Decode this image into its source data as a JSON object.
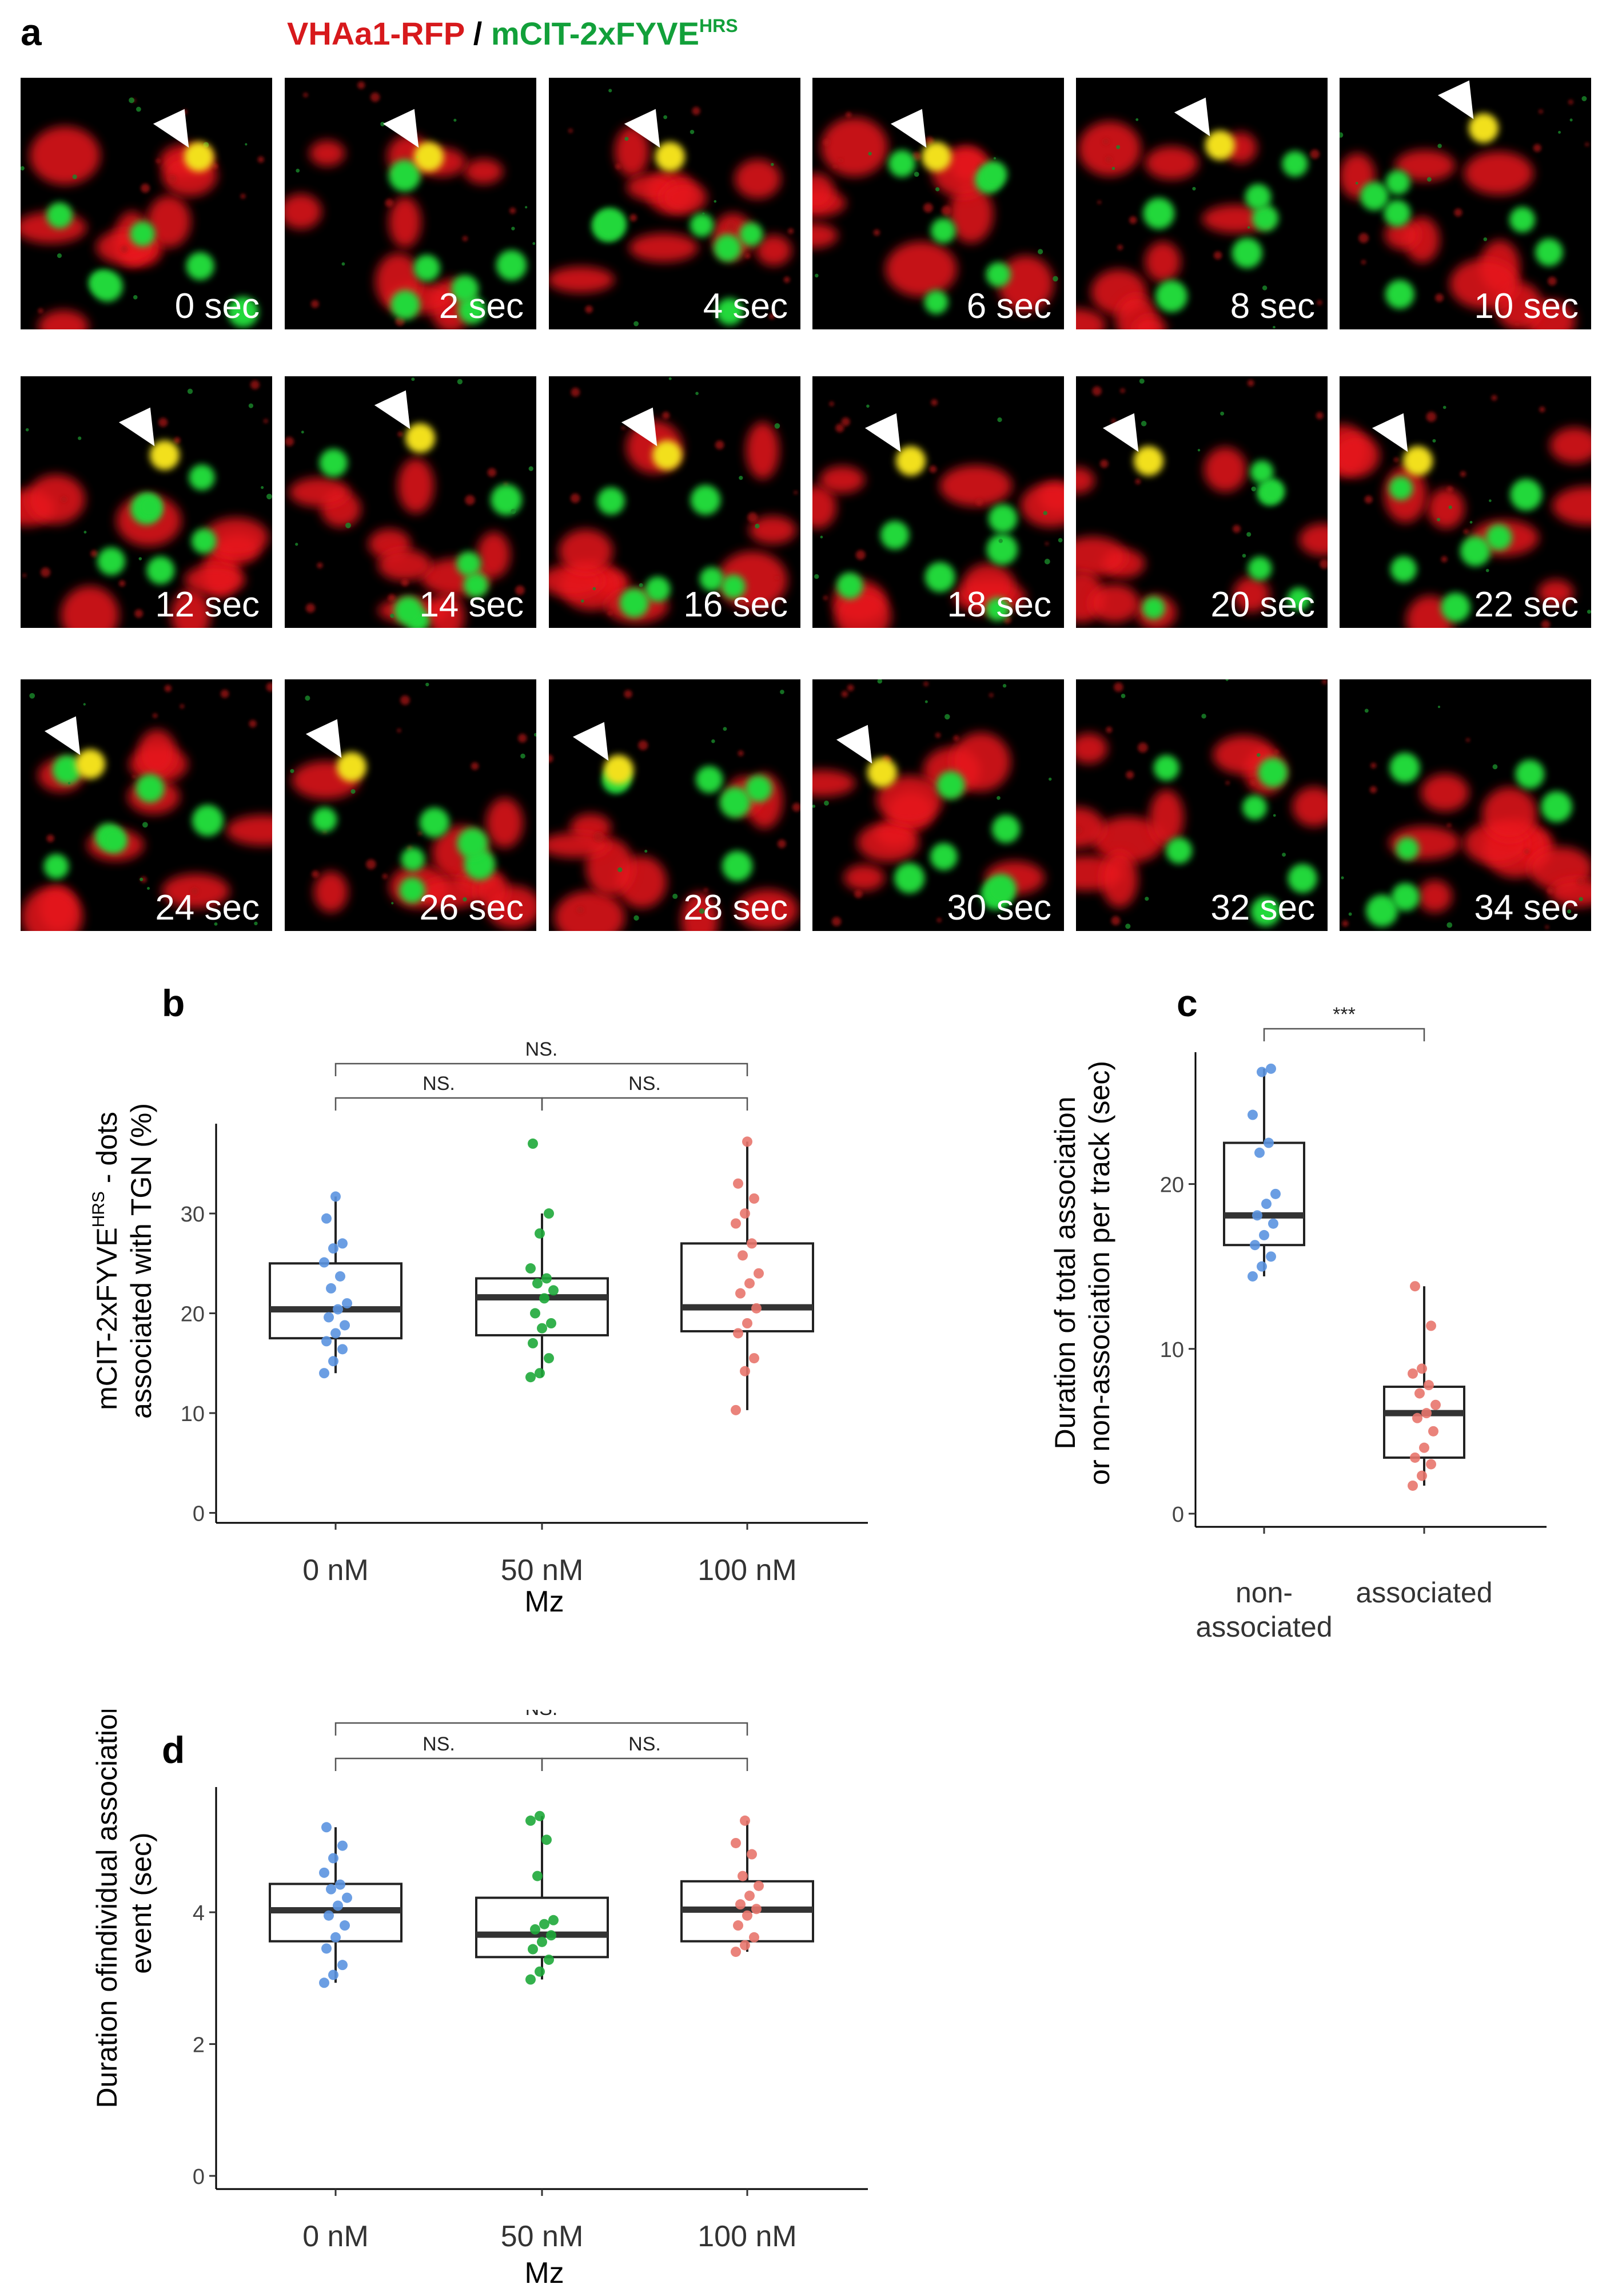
{
  "panel_labels": {
    "a": "a",
    "b": "b",
    "c": "c",
    "d": "d"
  },
  "panel_a": {
    "legend": {
      "red_part": "VHAa1-RFP",
      "separator": " / ",
      "green_part": "mCIT-2xFYVE",
      "green_sup": "HRS"
    },
    "frames": [
      "0 sec",
      "2 sec",
      "4 sec",
      "6 sec",
      "8 sec",
      "10 sec",
      "12 sec",
      "14 sec",
      "16 sec",
      "18 sec",
      "20 sec",
      "22 sec",
      "24 sec",
      "26 sec",
      "28 sec",
      "30 sec",
      "32 sec",
      "34 sec"
    ],
    "colors": {
      "rfp": "#e8141a",
      "cit": "#22d83a",
      "overlap": "#f2e01a",
      "background": "#000000"
    }
  },
  "chart_data": [
    {
      "id": "b",
      "type": "box",
      "title": "",
      "xlabel": "Mz",
      "ylabel_line1": "mCIT-2xFYVE",
      "ylabel_sup": "HRS",
      "ylabel_line1_suffix": " - dots",
      "ylabel_line2": "associated with TGN (%)",
      "categories": [
        "0 nM",
        "50 nM",
        "100 nM"
      ],
      "colors": [
        "#5b93e0",
        "#1ea83a",
        "#e8766d"
      ],
      "ylim": [
        -1,
        39
      ],
      "yticks": [
        "0",
        "10",
        "20",
        "30"
      ],
      "ytick_values": [
        0,
        10,
        20,
        30
      ],
      "boxes": [
        {
          "q1": 17.5,
          "median": 20.4,
          "q3": 25.0,
          "whisker_low": 14.0,
          "whisker_high": 31.7
        },
        {
          "q1": 17.8,
          "median": 21.6,
          "q3": 23.5,
          "whisker_low": 13.6,
          "whisker_high": 30.0
        },
        {
          "q1": 18.2,
          "median": 20.6,
          "q3": 27.0,
          "whisker_low": 10.3,
          "whisker_high": 37.2
        }
      ],
      "points": [
        [
          14.0,
          15.2,
          16.4,
          17.2,
          18.0,
          18.8,
          19.6,
          20.4,
          21.0,
          22.5,
          23.7,
          25.1,
          26.5,
          27.0,
          29.5,
          31.7
        ],
        [
          13.6,
          14.0,
          15.5,
          17.0,
          18.5,
          19.0,
          20.0,
          21.5,
          22.3,
          23.0,
          23.5,
          24.5,
          28.0,
          30.0,
          37.0
        ],
        [
          10.3,
          14.2,
          15.5,
          18.0,
          19.0,
          20.5,
          22.0,
          23.0,
          24.0,
          25.8,
          27.0,
          29.0,
          30.0,
          31.5,
          33.0,
          37.2
        ]
      ],
      "brackets": [
        {
          "from": 0,
          "to": 1,
          "label": "NS."
        },
        {
          "from": 1,
          "to": 2,
          "label": "NS."
        },
        {
          "from": 0,
          "to": 2,
          "label": "NS."
        }
      ]
    },
    {
      "id": "c",
      "type": "box",
      "title": "",
      "xlabel": "",
      "ylabel_line1": "Duration of total association",
      "ylabel_line2": "or non-association per track (sec)",
      "categories_line1": [
        "non-",
        "associated"
      ],
      "categories_line2": [
        "associated",
        ""
      ],
      "colors": [
        "#5b93e0",
        "#e8766d"
      ],
      "ylim": [
        -0.8,
        28
      ],
      "yticks": [
        "0",
        "10",
        "20"
      ],
      "ytick_values": [
        0,
        10,
        20
      ],
      "boxes": [
        {
          "q1": 16.3,
          "median": 18.1,
          "q3": 22.5,
          "whisker_low": 14.4,
          "whisker_high": 27.0
        },
        {
          "q1": 3.4,
          "median": 6.1,
          "q3": 7.7,
          "whisker_low": 1.7,
          "whisker_high": 13.8
        }
      ],
      "points": [
        [
          14.4,
          15.0,
          15.6,
          16.3,
          16.9,
          17.6,
          18.1,
          18.8,
          19.4,
          21.9,
          22.5,
          24.2,
          26.8,
          27.0
        ],
        [
          1.7,
          2.3,
          3.0,
          3.4,
          4.0,
          5.0,
          5.8,
          6.1,
          6.6,
          7.3,
          7.8,
          8.5,
          8.8,
          11.4,
          13.8
        ]
      ],
      "brackets": [
        {
          "from": 0,
          "to": 1,
          "label": "***"
        }
      ]
    },
    {
      "id": "d",
      "type": "box",
      "title": "",
      "xlabel": "Mz",
      "ylabel_line1": "Duration ofindividual association",
      "ylabel_line2": "event (sec)",
      "categories": [
        "0 nM",
        "50 nM",
        "100 nM"
      ],
      "colors": [
        "#5b93e0",
        "#1ea83a",
        "#e8766d"
      ],
      "ylim": [
        -0.2,
        5.9
      ],
      "yticks": [
        "0",
        "2",
        "4"
      ],
      "ytick_values": [
        0,
        2,
        4
      ],
      "boxes": [
        {
          "q1": 3.56,
          "median": 4.03,
          "q3": 4.43,
          "whisker_low": 2.93,
          "whisker_high": 5.29
        },
        {
          "q1": 3.32,
          "median": 3.66,
          "q3": 4.22,
          "whisker_low": 2.98,
          "whisker_high": 5.46
        },
        {
          "q1": 3.56,
          "median": 4.04,
          "q3": 4.47,
          "whisker_low": 3.4,
          "whisker_high": 5.39
        }
      ],
      "points": [
        [
          2.93,
          3.05,
          3.2,
          3.45,
          3.62,
          3.8,
          3.95,
          4.1,
          4.22,
          4.35,
          4.42,
          4.6,
          4.82,
          5.01,
          5.29
        ],
        [
          2.98,
          3.1,
          3.28,
          3.44,
          3.55,
          3.65,
          3.74,
          3.82,
          3.88,
          4.55,
          5.1,
          5.39,
          5.46
        ],
        [
          3.4,
          3.5,
          3.62,
          3.8,
          3.95,
          4.05,
          4.12,
          4.25,
          4.4,
          4.55,
          4.88,
          5.05,
          5.39
        ]
      ],
      "brackets": [
        {
          "from": 0,
          "to": 1,
          "label": "NS."
        },
        {
          "from": 1,
          "to": 2,
          "label": "NS."
        },
        {
          "from": 0,
          "to": 2,
          "label": "NS."
        }
      ]
    }
  ]
}
